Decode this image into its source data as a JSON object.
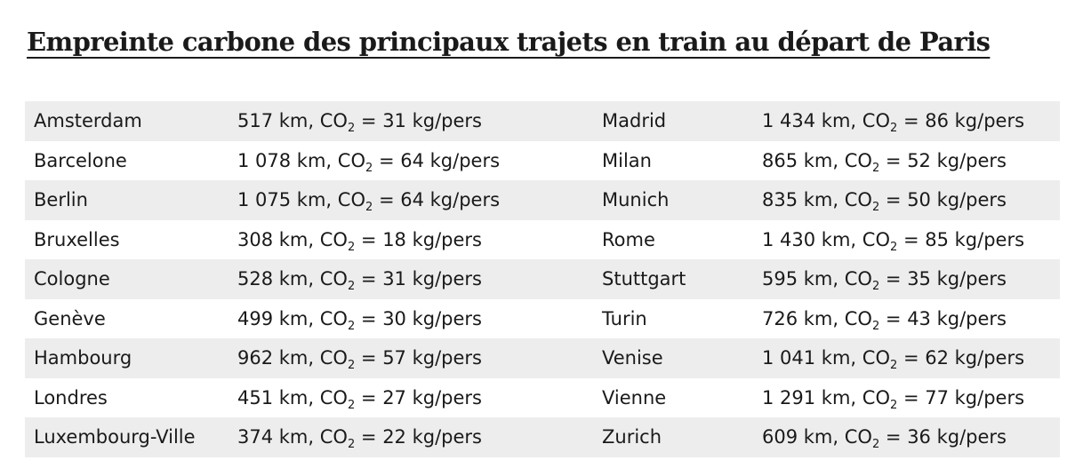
{
  "title": "Empreinte carbone des principaux trajets en train au départ de Paris",
  "co2_label": "CO",
  "co2_sub": "2",
  "rows": [
    {
      "left_city": "Amsterdam",
      "left_dist": "517 km,",
      "left_val": "= 31 kg/pers",
      "right_city": "Madrid",
      "right_dist": "1 434 km,",
      "right_val": "= 86 kg/pers"
    },
    {
      "left_city": "Barcelone",
      "left_dist": "1 078 km,",
      "left_val": "= 64 kg/pers",
      "right_city": "Milan",
      "right_dist": "865 km,",
      "right_val": "= 52 kg/pers"
    },
    {
      "left_city": "Berlin",
      "left_dist": "1 075 km,",
      "left_val": "= 64 kg/pers",
      "right_city": "Munich",
      "right_dist": "835 km,",
      "right_val": "= 50 kg/pers"
    },
    {
      "left_city": "Bruxelles",
      "left_dist": "308 km,",
      "left_val": "= 18 kg/pers",
      "right_city": "Rome",
      "right_dist": "1 430 km,",
      "right_val": "= 85 kg/pers"
    },
    {
      "left_city": "Cologne",
      "left_dist": "528 km,",
      "left_val": "= 31 kg/pers",
      "right_city": "Stuttgart",
      "right_dist": "595 km,",
      "right_val": "= 35 kg/pers"
    },
    {
      "left_city": "Genève",
      "left_dist": "499 km,",
      "left_val": "= 30 kg/pers",
      "right_city": "Turin",
      "right_dist": "726 km,",
      "right_val": "= 43 kg/pers"
    },
    {
      "left_city": "Hambourg",
      "left_dist": "962 km,",
      "left_val": "= 57 kg/pers",
      "right_city": "Venise",
      "right_dist": "1 041 km,",
      "right_val": "= 62 kg/pers"
    },
    {
      "left_city": "Londres",
      "left_dist": "451 km,",
      "left_val": "= 27 kg/pers",
      "right_city": "Vienne",
      "right_dist": "1 291 km,",
      "right_val": "= 77 kg/pers"
    },
    {
      "left_city": "Luxembourg-Ville",
      "left_dist": "374 km,",
      "left_val": "= 22 kg/pers",
      "right_city": "Zurich",
      "right_dist": "609 km,",
      "right_val": "= 36 kg/pers"
    }
  ]
}
